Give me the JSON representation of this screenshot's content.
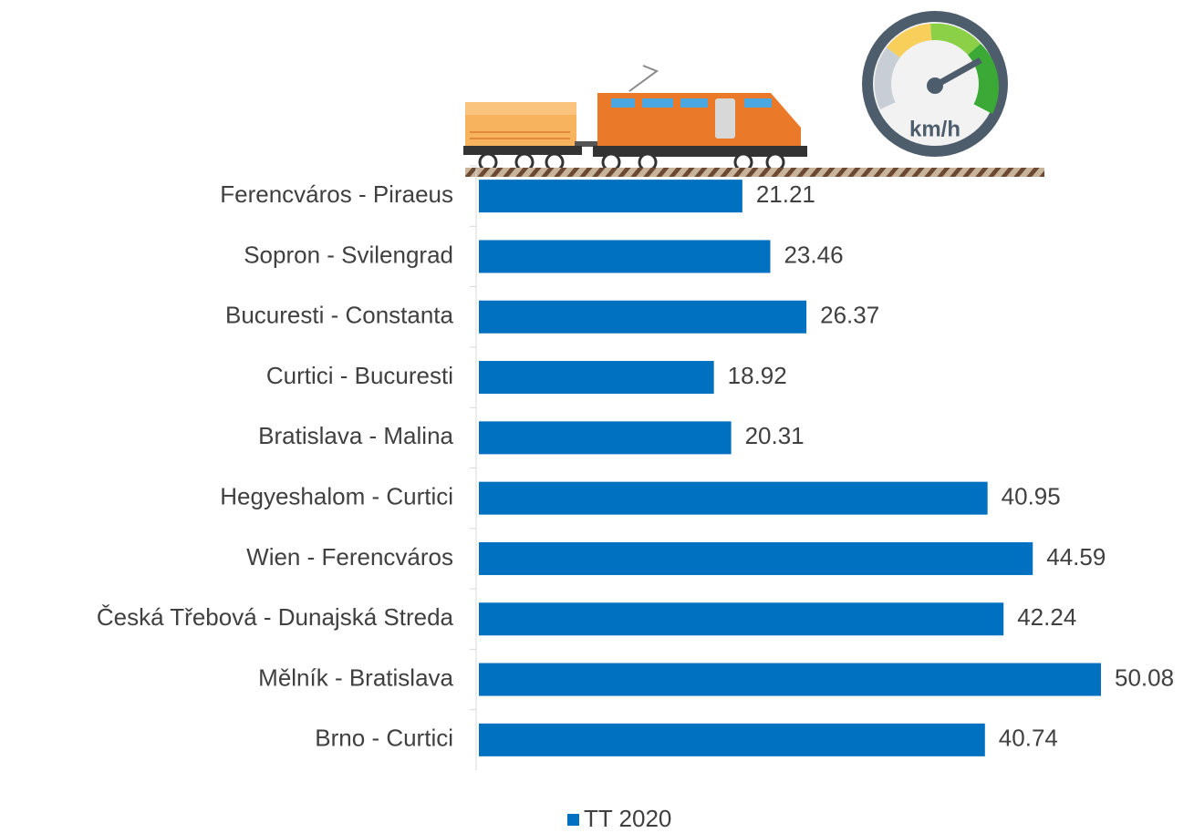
{
  "chart_data": {
    "type": "bar",
    "orientation": "horizontal",
    "categories": [
      "Ferencváros - Piraeus",
      "Sopron - Svilengrad",
      "Bucuresti - Constanta",
      "Curtici - Bucuresti",
      "Bratislava - Malina",
      "Hegyeshalom - Curtici",
      "Wien - Ferencváros",
      "Česká Třebová - Dunajská Streda",
      "Mělník - Bratislava",
      "Brno - Curtici"
    ],
    "series": [
      {
        "name": "TT 2020",
        "color": "#0070c0",
        "values": [
          21.21,
          23.46,
          26.37,
          18.92,
          20.31,
          40.95,
          44.59,
          42.24,
          50.08,
          40.74
        ]
      }
    ],
    "annotation": "km/h",
    "legend": "bottom"
  }
}
